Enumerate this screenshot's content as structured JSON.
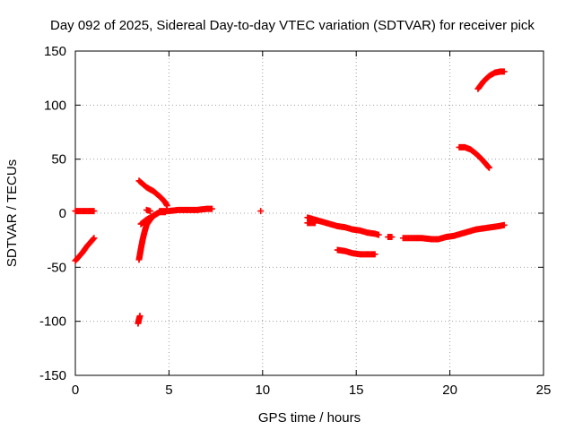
{
  "chart_data": {
    "type": "scatter",
    "title": "Day 092 of 2025, Sidereal Day-to-day VTEC variation (SDTVAR) for receiver pick",
    "xlabel": "GPS time / hours",
    "ylabel": "SDTVAR / TECUs",
    "xlim": [
      0,
      25
    ],
    "ylim": [
      -150,
      150
    ],
    "xticks": [
      0,
      5,
      10,
      15,
      20,
      25
    ],
    "yticks": [
      -150,
      -100,
      -50,
      0,
      50,
      100,
      150
    ],
    "grid": true,
    "marker": "+",
    "color": "#ff0000",
    "series": [
      {
        "points": [
          [
            0.0,
            2
          ],
          [
            0.2,
            2
          ],
          [
            0.4,
            2
          ],
          [
            0.6,
            2
          ],
          [
            0.8,
            2
          ],
          [
            1.0,
            2
          ]
        ]
      },
      {
        "points": [
          [
            0.0,
            -44
          ],
          [
            0.2,
            -40
          ],
          [
            0.4,
            -36
          ],
          [
            0.6,
            -31
          ],
          [
            0.8,
            -27
          ],
          [
            1.0,
            -23
          ]
        ]
      },
      {
        "points": [
          [
            3.35,
            -102
          ],
          [
            3.4,
            -98
          ],
          [
            3.45,
            -95
          ]
        ]
      },
      {
        "points": [
          [
            3.4,
            30
          ],
          [
            3.6,
            27
          ],
          [
            3.8,
            24
          ],
          [
            4.0,
            22
          ],
          [
            4.2,
            20
          ],
          [
            4.4,
            17
          ],
          [
            4.6,
            14
          ],
          [
            4.8,
            10
          ],
          [
            4.9,
            7
          ]
        ]
      },
      {
        "points": [
          [
            3.4,
            -43
          ],
          [
            3.5,
            -33
          ],
          [
            3.6,
            -24
          ],
          [
            3.7,
            -17
          ],
          [
            3.8,
            -11
          ],
          [
            4.0,
            -6
          ],
          [
            4.2,
            -2
          ],
          [
            4.5,
            1
          ],
          [
            4.8,
            1
          ]
        ]
      },
      {
        "points": [
          [
            3.5,
            -10
          ],
          [
            3.8,
            -6
          ],
          [
            4.1,
            -3
          ],
          [
            4.4,
            0
          ]
        ]
      },
      {
        "points": [
          [
            3.8,
            3
          ],
          [
            4.0,
            2
          ]
        ]
      },
      {
        "points": [
          [
            4.5,
            2
          ],
          [
            5.0,
            2
          ],
          [
            5.5,
            3
          ],
          [
            6.0,
            3
          ],
          [
            6.5,
            3
          ],
          [
            7.0,
            4
          ],
          [
            7.3,
            4
          ]
        ]
      },
      {
        "points": [
          [
            9.9,
            2
          ]
        ]
      },
      {
        "points": [
          [
            12.4,
            -4
          ],
          [
            12.8,
            -6
          ],
          [
            13.2,
            -8
          ],
          [
            13.6,
            -10
          ],
          [
            14.0,
            -12
          ],
          [
            14.4,
            -13
          ],
          [
            14.8,
            -15
          ],
          [
            15.2,
            -16
          ],
          [
            15.6,
            -18
          ],
          [
            16.0,
            -19
          ],
          [
            16.2,
            -20
          ]
        ]
      },
      {
        "points": [
          [
            12.4,
            -9
          ],
          [
            12.8,
            -9
          ]
        ]
      },
      {
        "points": [
          [
            14.0,
            -34
          ],
          [
            14.4,
            -35
          ],
          [
            14.8,
            -37
          ],
          [
            15.2,
            -38
          ],
          [
            15.6,
            -38
          ],
          [
            16.0,
            -38
          ]
        ]
      },
      {
        "points": [
          [
            16.7,
            -22
          ],
          [
            16.9,
            -22
          ]
        ]
      },
      {
        "points": [
          [
            17.5,
            -23
          ],
          [
            18.0,
            -23
          ],
          [
            18.5,
            -23
          ],
          [
            19.0,
            -24
          ],
          [
            19.4,
            -24
          ],
          [
            19.8,
            -22
          ],
          [
            20.2,
            -21
          ],
          [
            20.6,
            -19
          ],
          [
            21.0,
            -17
          ],
          [
            21.4,
            -15
          ],
          [
            21.8,
            -14
          ],
          [
            22.2,
            -13
          ],
          [
            22.6,
            -12
          ],
          [
            22.9,
            -11
          ]
        ]
      },
      {
        "points": [
          [
            20.5,
            61
          ],
          [
            20.8,
            61
          ],
          [
            21.1,
            59
          ],
          [
            21.4,
            55
          ],
          [
            21.7,
            50
          ],
          [
            22.0,
            44
          ],
          [
            22.1,
            42
          ]
        ]
      },
      {
        "points": [
          [
            21.5,
            115
          ],
          [
            21.8,
            122
          ],
          [
            22.1,
            127
          ],
          [
            22.4,
            130
          ],
          [
            22.7,
            131
          ],
          [
            22.9,
            131
          ]
        ]
      }
    ]
  }
}
